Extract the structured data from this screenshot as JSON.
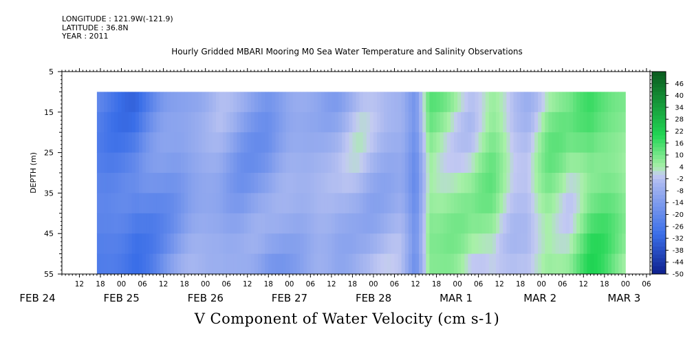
{
  "header": {
    "longitude": "LONGITUDE : 121.9W(-121.9)",
    "latitude": "LATITUDE : 36.8N",
    "year": "YEAR : 2011"
  },
  "chart_data": {
    "type": "heatmap",
    "title": "Hourly Gridded MBARI Mooring M0 Sea Water Temperature and Salinity Observations",
    "xlabel": "V Component of Water Velocity (cm s-1)",
    "ylabel": "DEPTH (m)",
    "ylim": [
      55,
      5
    ],
    "y_ticks": [
      5,
      15,
      25,
      35,
      45,
      55
    ],
    "data_depth_range": [
      10,
      55
    ],
    "x_hour_ticks": [
      "12",
      "18",
      "00",
      "06",
      "12",
      "18",
      "00",
      "06",
      "12",
      "18",
      "00",
      "06",
      "12",
      "18",
      "00",
      "06",
      "12",
      "18",
      "00",
      "06",
      "12",
      "18",
      "00",
      "06",
      "12",
      "18",
      "00",
      "06"
    ],
    "x_day_labels": [
      "FEB 24",
      "FEB 25",
      "FEB 26",
      "FEB 27",
      "FEB 28",
      "MAR  1",
      "MAR  2",
      "MAR  3"
    ],
    "colorbar_ticks": [
      "46",
      "40",
      "34",
      "28",
      "22",
      "16",
      "10",
      "4",
      "-2",
      "-8",
      "-14",
      "-20",
      "-26",
      "-32",
      "-38",
      "-44",
      "-50"
    ],
    "colorbar_range": [
      -50,
      52
    ],
    "colors": {
      "negative_strong": "#0d1f8c",
      "negative_mid": "#3a6ee8",
      "negative_weak": "#a9b8f0",
      "positive_weak": "#a8f0a8",
      "positive_mid": "#22d655",
      "positive_strong": "#0a5a1e"
    },
    "data_time_hours": [
      17,
      168
    ],
    "velocity_by_hour": [
      {
        "hour": 17,
        "v": -22
      },
      {
        "hour": 28,
        "v": -26
      },
      {
        "hour": 36,
        "v": -16
      },
      {
        "hour": 44,
        "v": -10
      },
      {
        "hour": 52,
        "v": -8
      },
      {
        "hour": 58,
        "v": -12
      },
      {
        "hour": 66,
        "v": -14
      },
      {
        "hour": 72,
        "v": -9
      },
      {
        "hour": 80,
        "v": -6
      },
      {
        "hour": 86,
        "v": -8
      },
      {
        "hour": 92,
        "v": -4
      },
      {
        "hour": 98,
        "v": -6
      },
      {
        "hour": 104,
        "v": -7
      },
      {
        "hour": 108,
        "v": -20
      },
      {
        "hour": 112,
        "v": 8
      },
      {
        "hour": 118,
        "v": 6
      },
      {
        "hour": 124,
        "v": 2
      },
      {
        "hour": 130,
        "v": 8
      },
      {
        "hour": 136,
        "v": -1
      },
      {
        "hour": 140,
        "v": -3
      },
      {
        "hour": 146,
        "v": 7
      },
      {
        "hour": 152,
        "v": 5
      },
      {
        "hour": 158,
        "v": 14
      },
      {
        "hour": 162,
        "v": 12
      },
      {
        "hour": 168,
        "v": 6
      }
    ]
  }
}
